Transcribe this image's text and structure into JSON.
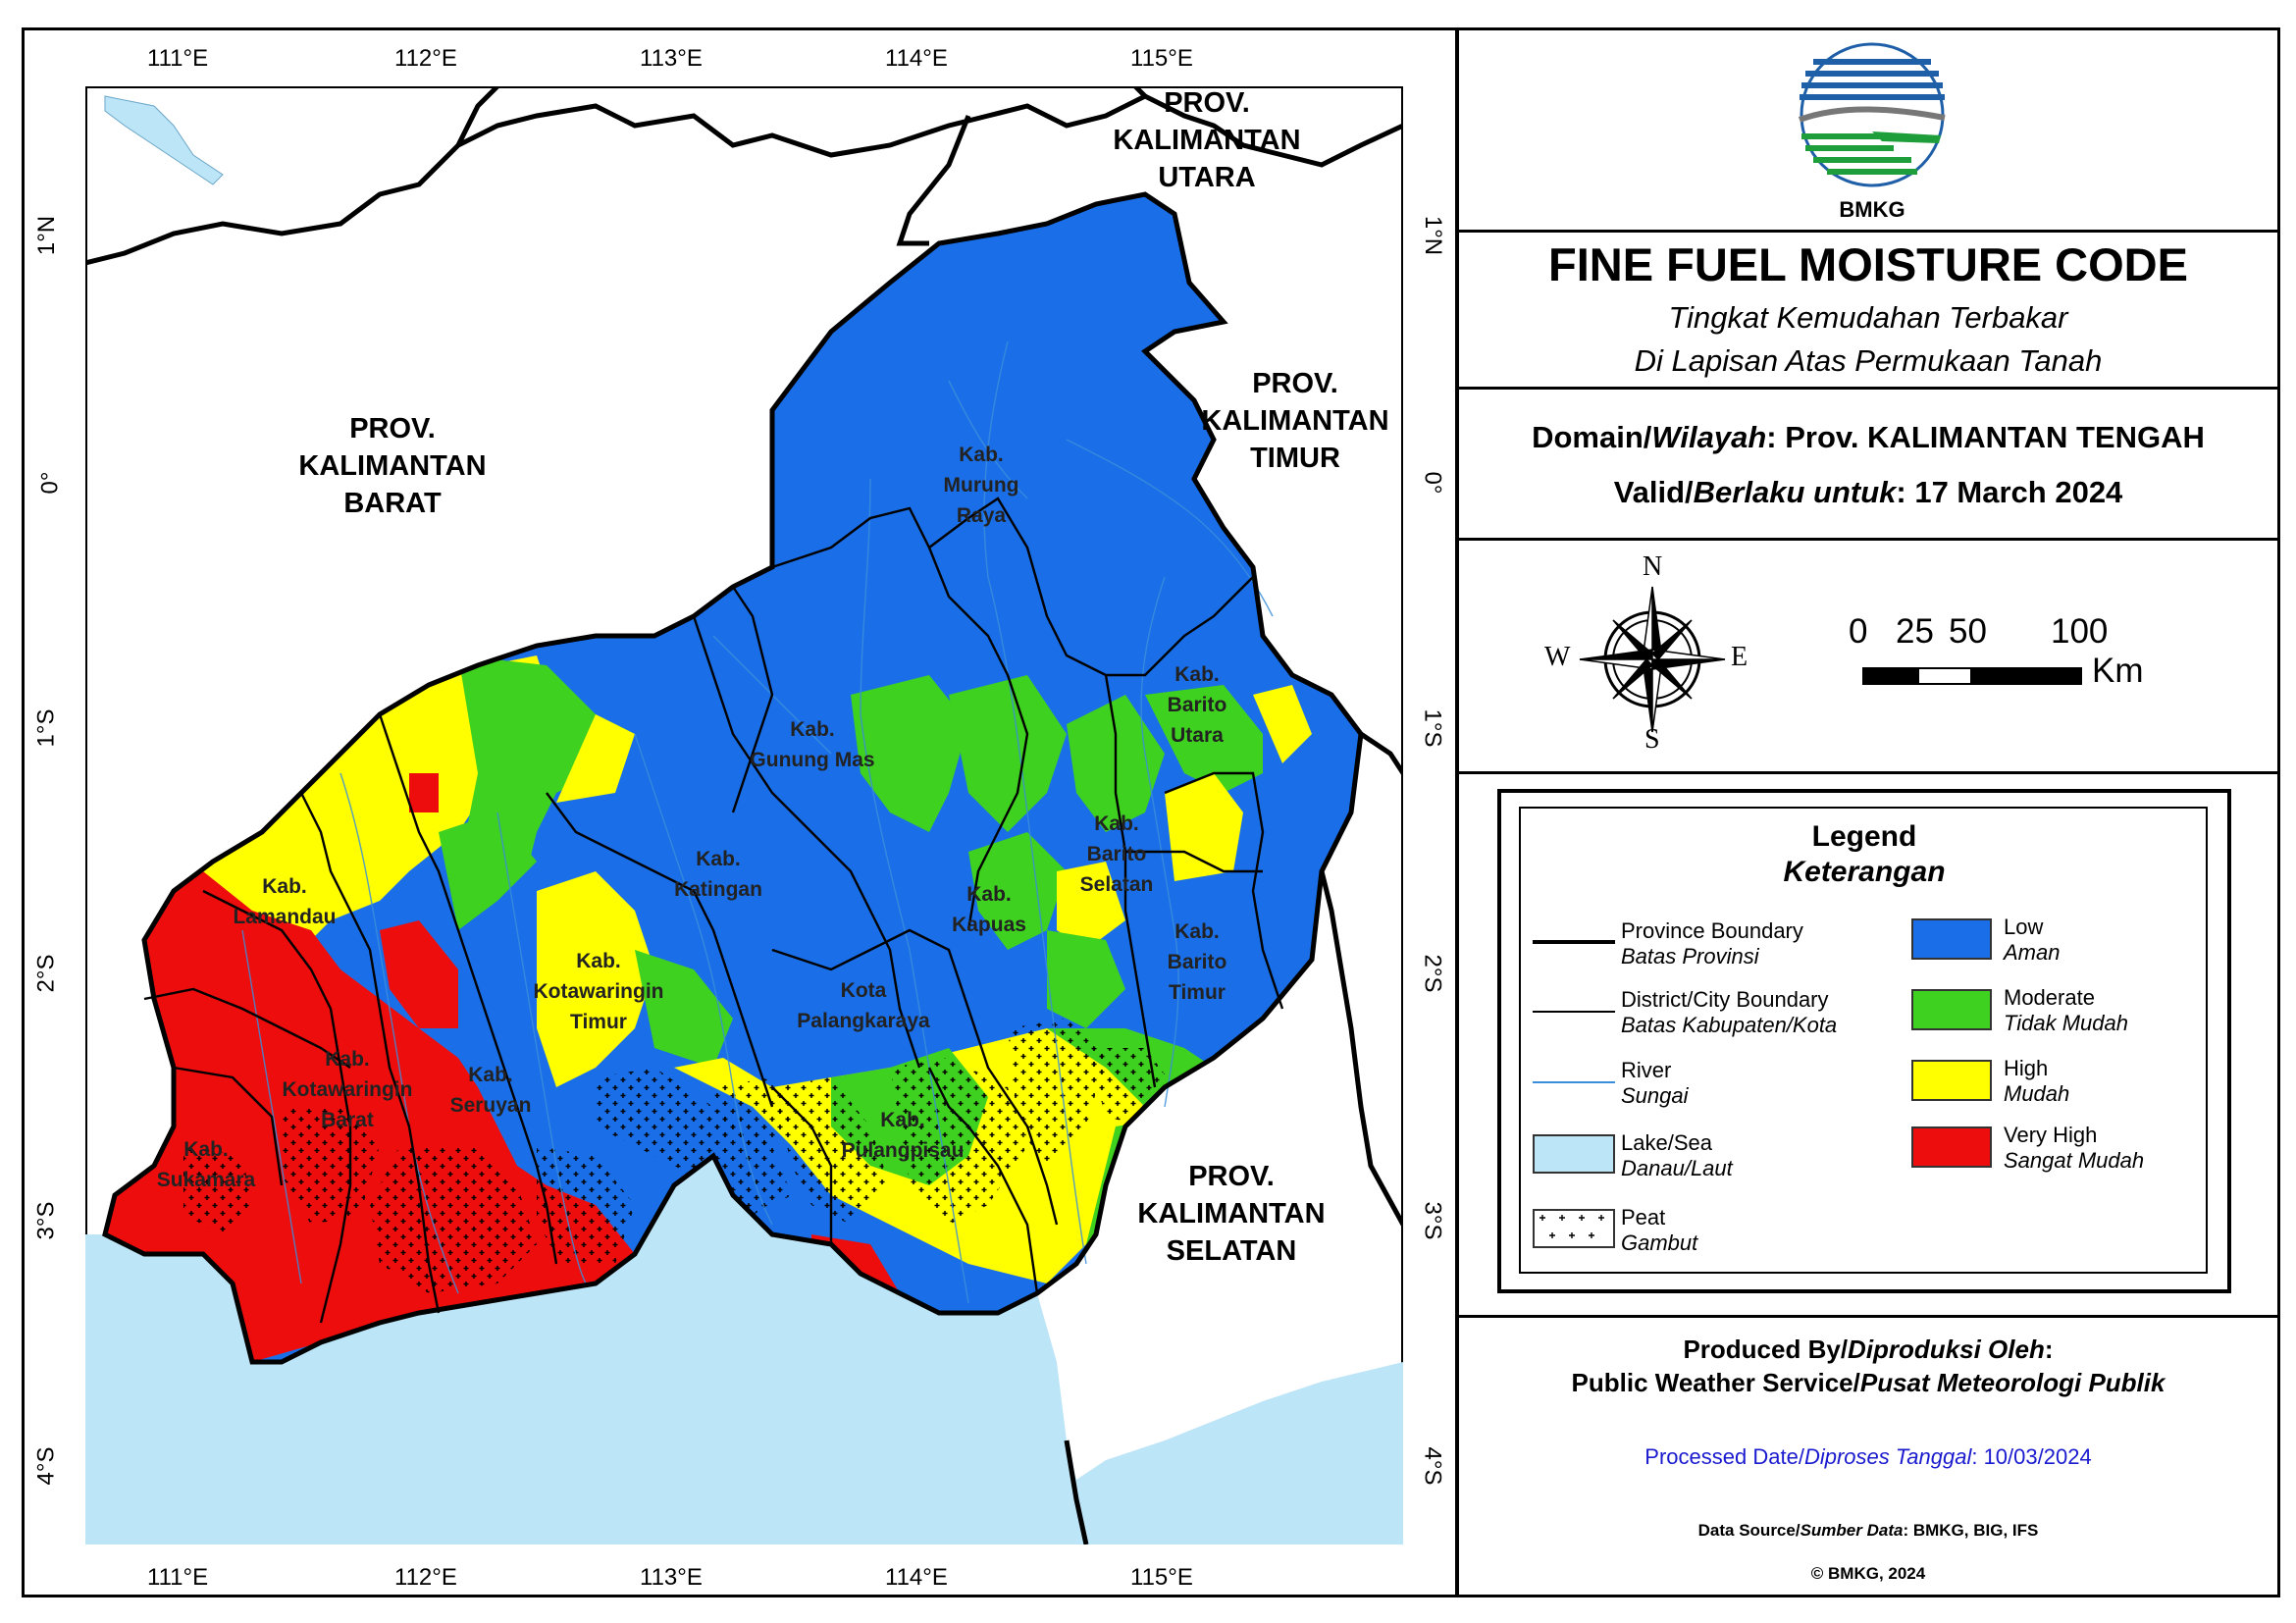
{
  "map": {
    "lon_labels": [
      "111°E",
      "112°E",
      "113°E",
      "114°E",
      "115°E"
    ],
    "lat_labels": [
      "1°N",
      "0°",
      "1°S",
      "2°S",
      "3°S",
      "4°S"
    ],
    "provinces": [
      {
        "id": "kalbar",
        "lines": [
          "PROV.",
          "KALIMANTAN",
          "BARAT"
        ]
      },
      {
        "id": "kaltara",
        "lines": [
          "PROV.",
          "KALIMANTAN",
          "UTARA"
        ]
      },
      {
        "id": "kaltim",
        "lines": [
          "PROV.",
          "KALIMANTAN",
          "TIMUR"
        ]
      },
      {
        "id": "kalsel",
        "lines": [
          "PROV.",
          "KALIMANTAN",
          "SELATAN"
        ]
      }
    ],
    "districts": [
      {
        "id": "murung-raya",
        "lines": [
          "Kab.",
          "Murung",
          "Raya"
        ]
      },
      {
        "id": "barito-utara",
        "lines": [
          "Kab.",
          "Barito",
          "Utara"
        ]
      },
      {
        "id": "gunung-mas",
        "lines": [
          "Kab.",
          "Gunung Mas"
        ]
      },
      {
        "id": "katingan",
        "lines": [
          "Kab.",
          "Katingan"
        ]
      },
      {
        "id": "barito-selatan",
        "lines": [
          "Kab.",
          "Barito",
          "Selatan"
        ]
      },
      {
        "id": "kapuas",
        "lines": [
          "Kab.",
          "Kapuas"
        ]
      },
      {
        "id": "barito-timur",
        "lines": [
          "Kab.",
          "Barito",
          "Timur"
        ]
      },
      {
        "id": "lamandau",
        "lines": [
          "Kab.",
          "Lamandau"
        ]
      },
      {
        "id": "kotawaringin-timur",
        "lines": [
          "Kab.",
          "Kotawaringin",
          "Timur"
        ]
      },
      {
        "id": "palangkaraya",
        "lines": [
          "Kota",
          "Palangkaraya"
        ]
      },
      {
        "id": "kotawaringin-barat",
        "lines": [
          "Kab.",
          "Kotawaringin",
          "Barat"
        ]
      },
      {
        "id": "seruyan",
        "lines": [
          "Kab.",
          "Seruyan"
        ]
      },
      {
        "id": "pulang-pisau",
        "lines": [
          "Kab.",
          "Pulangpisau"
        ]
      },
      {
        "id": "sukamara",
        "lines": [
          "Kab.",
          "Sukamara"
        ]
      }
    ],
    "colors": {
      "low": "#1a6fe8",
      "moderate": "#3fd11f",
      "high": "#ffff00",
      "very_high": "#ee0d0d",
      "sea": "#bde5f8",
      "land": "#ffffff"
    }
  },
  "panel": {
    "logo_text": "BMKG",
    "title": "FINE FUEL MOISTURE CODE",
    "subtitle_1": "Tingkat Kemudahan Terbakar",
    "subtitle_2": "Di Lapisan Atas Permukaan Tanah",
    "domain_label_en": "Domain/",
    "domain_label_id": "Wilayah",
    "domain_value": ": Prov. KALIMANTAN TENGAH",
    "valid_label_en": "Valid/",
    "valid_label_id": "Berlaku untuk",
    "valid_value": ": 17 March 2024",
    "compass": {
      "n": "N",
      "s": "S",
      "e": "E",
      "w": "W"
    },
    "scale": {
      "ticks": [
        "0",
        "25",
        "50",
        "100"
      ],
      "unit": "Km"
    },
    "legend": {
      "title": "Legend",
      "subtitle": "Keterangan",
      "lines": [
        {
          "en": "Province Boundary",
          "id": "Batas Provinsi"
        },
        {
          "en": "District/City Boundary",
          "id": "Batas Kabupaten/Kota"
        },
        {
          "en": "River",
          "id": "Sungai"
        },
        {
          "en": "Lake/Sea",
          "id": "Danau/Laut"
        },
        {
          "en": "Peat",
          "id": "Gambut"
        }
      ],
      "classes": [
        {
          "en": "Low",
          "id": "Aman",
          "color": "#1a6fe8"
        },
        {
          "en": "Moderate",
          "id": "Tidak Mudah",
          "color": "#3fd11f"
        },
        {
          "en": "High",
          "id": "Mudah",
          "color": "#ffff00"
        },
        {
          "en": "Very High",
          "id": "Sangat Mudah",
          "color": "#ee0d0d"
        }
      ]
    },
    "produced_label_en": "Produced By/",
    "produced_label_id": "Diproduksi Oleh",
    "produced_colon": ":",
    "producer_en": "Public Weather Service/",
    "producer_id": "Pusat Meteorologi Publik",
    "processed_label_en": "Processed Date/",
    "processed_label_id": "Diproses Tanggal",
    "processed_value": ": 10/03/2024",
    "source_label_en": "Data Source/",
    "source_label_id": "Sumber Data",
    "source_value": ": BMKG, BIG, IFS",
    "copyright": "© BMKG, 2024"
  }
}
